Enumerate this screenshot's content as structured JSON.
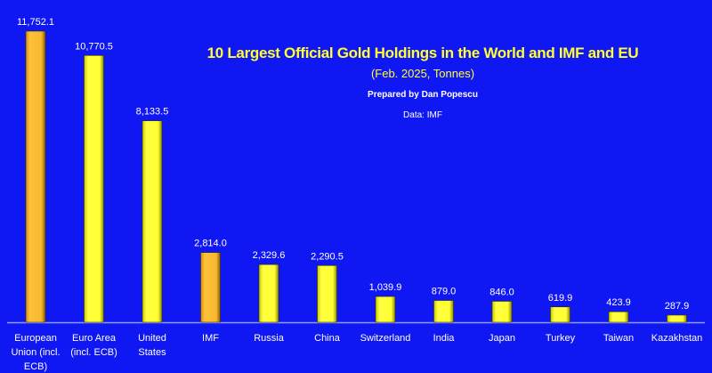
{
  "chart_data": {
    "type": "bar",
    "title": "10 Largest Official Gold Holdings in the World and IMF and EU",
    "subtitle": "(Feb. 2025, Tonnes)",
    "prepared_by": "Prepared by Dan Popescu",
    "source": "Data: IMF",
    "xlabel": "",
    "ylabel": "",
    "ylim": [
      0,
      11752.1
    ],
    "grid": false,
    "categories": [
      "European Union (incl. ECB)",
      "Euro Area (incl. ECB)",
      "United States",
      "IMF",
      "Russia",
      "China",
      "Switzerland",
      "India",
      "Japan",
      "Turkey",
      "Taiwan",
      "Kazakhstan"
    ],
    "category_lines": [
      [
        "European",
        "Union (incl.",
        "ECB)"
      ],
      [
        "Euro Area",
        "(incl. ECB)"
      ],
      [
        "United",
        "States"
      ],
      [
        "IMF"
      ],
      [
        "Russia"
      ],
      [
        "China"
      ],
      [
        "Switzerland"
      ],
      [
        "India"
      ],
      [
        "Japan"
      ],
      [
        "Turkey"
      ],
      [
        "Taiwan"
      ],
      [
        "Kazakhstan"
      ]
    ],
    "values": [
      11752.1,
      10770.5,
      8133.5,
      2814.0,
      2329.6,
      2290.5,
      1039.9,
      879.0,
      846.0,
      619.9,
      423.9,
      287.9
    ],
    "value_labels": [
      "11,752.1",
      "10,770.5",
      "8,133.5",
      "2,814.0",
      "2,329.6",
      "2,290.5",
      "1,039.9",
      "879.0",
      "846.0",
      "619.9",
      "423.9",
      "287.9"
    ],
    "highlight": [
      true,
      false,
      false,
      true,
      false,
      false,
      false,
      false,
      false,
      false,
      false,
      false
    ],
    "colors": {
      "background": "#0f17f2",
      "bar": "#ffff33",
      "highlight_bar": "#f5b82e",
      "text": "#ffffff",
      "title": "#ffff33"
    }
  }
}
